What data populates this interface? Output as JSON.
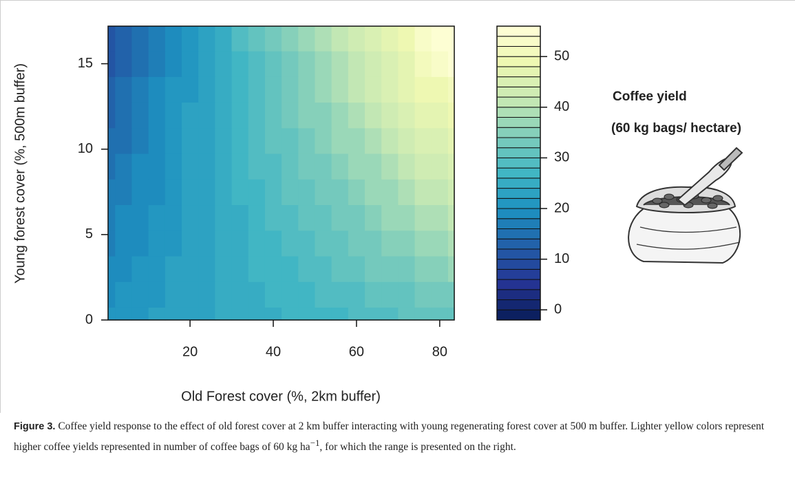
{
  "chart_data": {
    "type": "contour",
    "y_axis_label": "Young forest cover (%, 500m buffer)",
    "x_axis_label": "Old Forest cover (%, 2km buffer)",
    "xlim": [
      0.3,
      83.5
    ],
    "xticks": [
      20,
      40,
      60,
      80
    ],
    "ylim": [
      0,
      17.2
    ],
    "yticks": [
      0,
      5,
      10,
      15
    ],
    "x": [
      0,
      4,
      8,
      12,
      16,
      20,
      24,
      28,
      32,
      36,
      40,
      44,
      48,
      52,
      56,
      60,
      64,
      68,
      72,
      76,
      80,
      84
    ],
    "y": [
      0,
      1.5,
      3,
      4.5,
      6,
      7.5,
      9,
      10.5,
      12,
      13.5,
      15,
      16.5
    ],
    "z": [
      [
        20,
        21,
        21,
        22,
        22,
        23,
        23,
        24,
        24,
        25,
        25,
        26,
        26,
        27,
        27,
        28,
        29,
        29,
        30,
        30,
        31,
        31
      ],
      [
        19,
        20,
        20,
        21,
        22,
        22,
        23,
        24,
        25,
        25,
        26,
        27,
        27,
        28,
        29,
        29,
        30,
        31,
        31,
        32,
        33,
        33
      ],
      [
        18,
        19,
        20,
        21,
        22,
        22,
        23,
        24,
        25,
        26,
        27,
        27,
        28,
        29,
        30,
        31,
        32,
        32,
        33,
        34,
        35,
        36
      ],
      [
        17,
        18,
        19,
        20,
        21,
        22,
        23,
        24,
        25,
        26,
        27,
        28,
        29,
        30,
        31,
        32,
        33,
        34,
        35,
        36,
        37,
        38
      ],
      [
        16,
        18,
        19,
        20,
        21,
        22,
        23,
        24,
        25,
        27,
        28,
        29,
        30,
        31,
        32,
        33,
        35,
        36,
        37,
        38,
        39,
        40
      ],
      [
        16,
        17,
        18,
        19,
        21,
        22,
        23,
        25,
        26,
        27,
        28,
        30,
        31,
        32,
        33,
        35,
        36,
        37,
        39,
        40,
        41,
        42
      ],
      [
        15,
        16,
        18,
        19,
        20,
        22,
        23,
        25,
        26,
        28,
        29,
        30,
        32,
        33,
        35,
        36,
        37,
        39,
        40,
        42,
        43,
        45
      ],
      [
        14,
        15,
        17,
        19,
        20,
        22,
        23,
        25,
        26,
        28,
        30,
        31,
        33,
        34,
        36,
        37,
        39,
        41,
        42,
        44,
        45,
        47
      ],
      [
        13,
        15,
        16,
        18,
        20,
        22,
        23,
        25,
        27,
        28,
        30,
        32,
        34,
        35,
        37,
        39,
        40,
        42,
        44,
        46,
        47,
        49
      ],
      [
        12,
        14,
        16,
        18,
        20,
        21,
        23,
        25,
        27,
        29,
        31,
        33,
        34,
        36,
        38,
        40,
        42,
        44,
        46,
        48,
        49,
        51
      ],
      [
        11,
        13,
        15,
        17,
        19,
        21,
        23,
        25,
        27,
        29,
        31,
        33,
        35,
        37,
        39,
        41,
        43,
        45,
        47,
        50,
        52,
        54
      ],
      [
        10,
        12,
        15,
        17,
        19,
        21,
        23,
        25,
        28,
        30,
        32,
        34,
        36,
        38,
        41,
        43,
        45,
        47,
        49,
        52,
        54,
        56
      ]
    ],
    "levels": [
      -2,
      0,
      2,
      4,
      6,
      8,
      10,
      12,
      14,
      16,
      18,
      20,
      22,
      24,
      26,
      28,
      30,
      32,
      34,
      36,
      38,
      40,
      42,
      44,
      46,
      48,
      50,
      52,
      54,
      56
    ],
    "zlim": [
      -2,
      56
    ],
    "zticks": [
      0,
      10,
      20,
      30,
      40,
      50
    ],
    "colors": [
      "#081d58",
      "#253494",
      "#225ea8",
      "#1d91c0",
      "#41b6c4",
      "#7fcdbb",
      "#c7e9b4",
      "#edf8b1",
      "#ffffd9"
    ],
    "annotation_title": "Coffee yield",
    "annotation_units": "(60 kg bags/ hectare)"
  },
  "caption": {
    "label": "Figure 3.",
    "text": "Coffee yield response to the effect of old forest cover at 2 km buffer interacting with young regenerating forest cover at 500 m buffer. Lighter yellow colors represent higher coffee yields represented in number of coffee bags of 60 kg ha",
    "superscript": "−1",
    "text_end": ", for which the range is presented on the right."
  }
}
